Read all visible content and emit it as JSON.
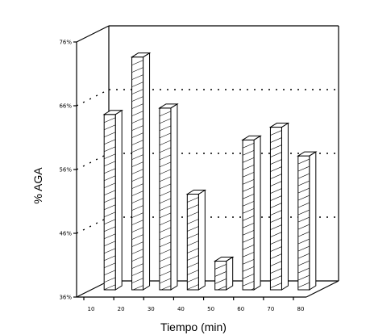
{
  "chart_data": {
    "type": "bar",
    "style": "3d",
    "categories": [
      "10",
      "20",
      "30",
      "40",
      "50",
      "60",
      "70",
      "80"
    ],
    "values": [
      63.5,
      72.5,
      64.5,
      51,
      40.5,
      59.5,
      61.5,
      57
    ],
    "xlabel": "Tiempo (min)",
    "ylabel": "% AGA",
    "yticks": [
      "36%",
      "46%",
      "56%",
      "66%",
      "76%"
    ],
    "ylim": [
      36,
      76
    ],
    "grid": "dotted horizontal lines on back wall",
    "bar_fill": "diagonal hatch"
  }
}
